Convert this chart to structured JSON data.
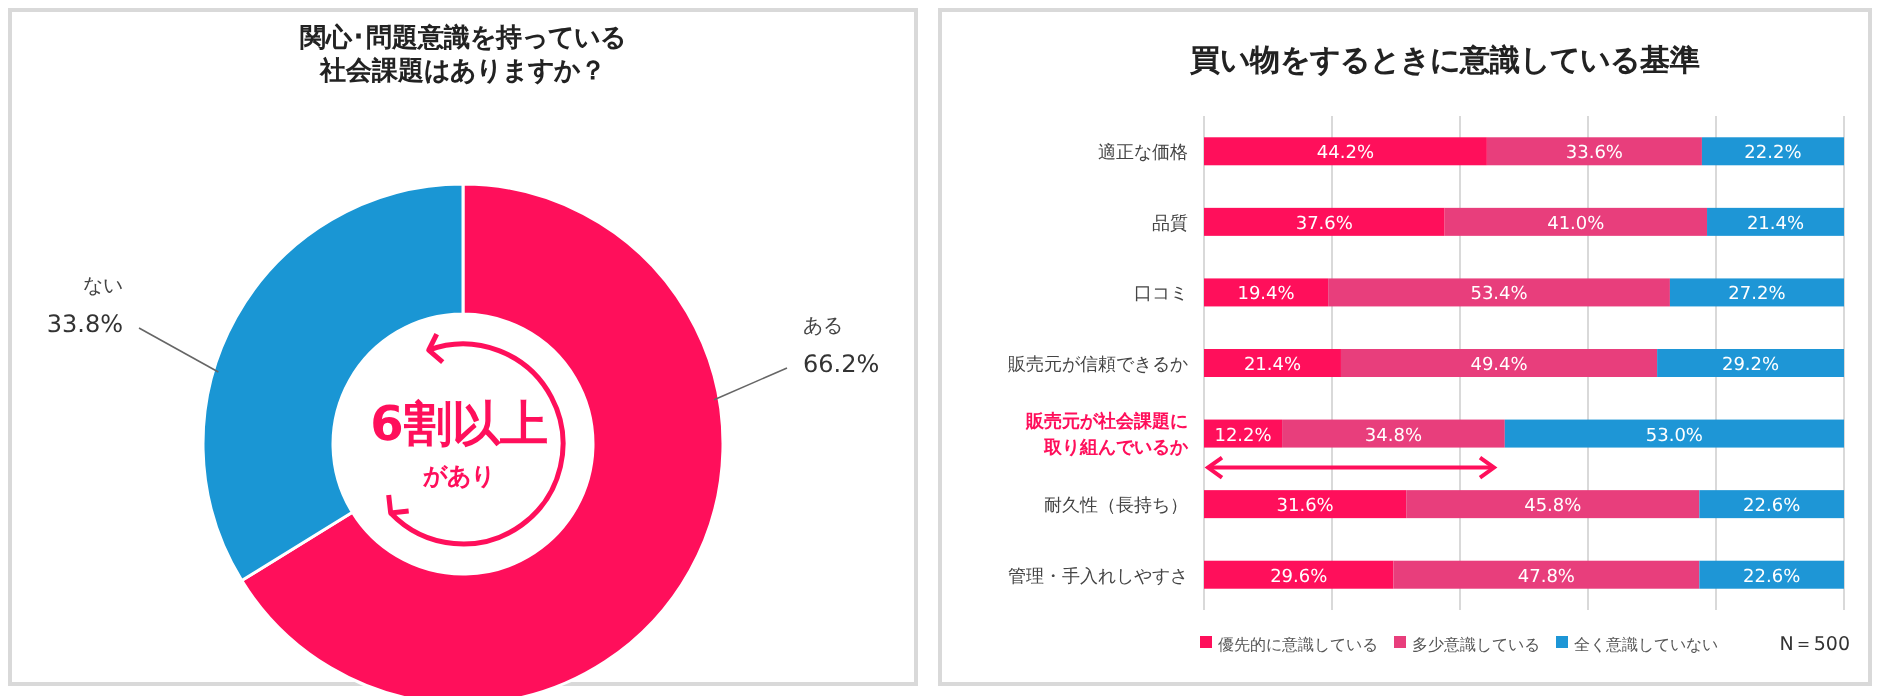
{
  "chart_data": [
    {
      "type": "donut",
      "title": "関心･問題意識を持っている社会課題はありますか？",
      "categories": [
        "ある",
        "ない"
      ],
      "values": [
        66.2,
        33.8
      ],
      "colors": [
        "#ff0f5b",
        "#1a96d4"
      ],
      "value_labels": [
        "66.2%",
        "33.8%"
      ],
      "legend": false,
      "annotations": [
        "6割以上",
        "があり"
      ]
    },
    {
      "type": "bar",
      "orientation": "horizontal",
      "stacked": true,
      "title": "買い物をするときに意識している基準",
      "categories": [
        "適正な価格",
        "品質",
        "口コミ",
        "販売元が信頼できるか",
        "販売元が社会課題に取り組んでいるか",
        "耐久性（長持ち）",
        "管理・手入れしやすさ"
      ],
      "series": [
        {
          "name": "優先的に意識している",
          "color": "#ff0f5b",
          "values": [
            44.2,
            37.6,
            19.4,
            21.4,
            12.2,
            31.6,
            29.6
          ],
          "value_labels": [
            "44.2%",
            "37.6%",
            "19.4%",
            "21.4%",
            "12.2%",
            "31.6%",
            "29.6%"
          ]
        },
        {
          "name": "多少意識している",
          "color": "#e83e7c",
          "values": [
            33.6,
            41.0,
            53.4,
            49.4,
            34.8,
            45.8,
            47.8
          ],
          "value_labels": [
            "33.6%",
            "41.0%",
            "53.4%",
            "49.4%",
            "34.8%",
            "45.8%",
            "47.8%"
          ]
        },
        {
          "name": "全く意識していない",
          "color": "#1e96d6",
          "values": [
            22.2,
            21.4,
            27.2,
            29.2,
            53.0,
            22.6,
            22.6
          ],
          "value_labels": [
            "22.2%",
            "21.4%",
            "27.2%",
            "29.2%",
            "53.0%",
            "22.6%",
            "22.6%"
          ]
        }
      ],
      "grid": "x",
      "tick_labels": "y",
      "legend": "bottom",
      "annotations": [
        "N＝500"
      ]
    }
  ]
}
